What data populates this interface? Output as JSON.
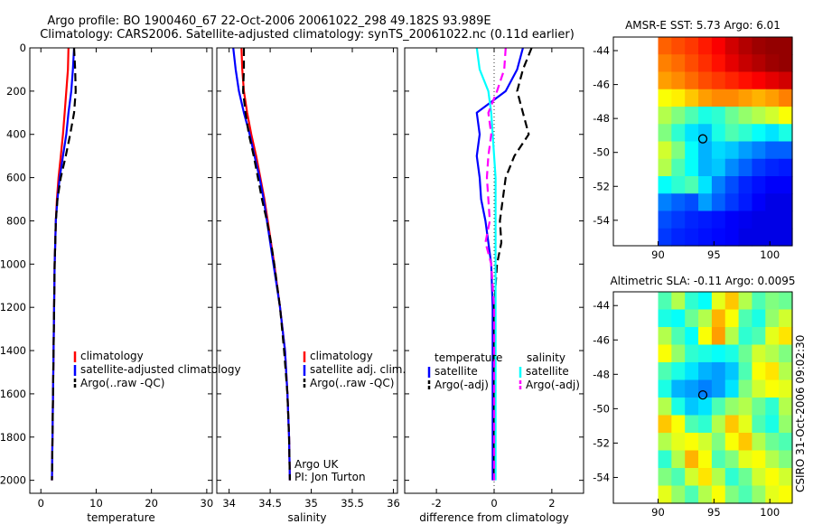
{
  "title": {
    "line1": "Argo profile: BO 1900460_67 22-Oct-2006 20061022_298 49.182S 93.989E",
    "line2": "Climatology: CARS2006. Satellite-adjusted climatology: synTS_20061022.nc (0.11d earlier)"
  },
  "colors": {
    "climatology": "#ff0000",
    "satellite": "#0000ff",
    "argo": "#000000",
    "cyan": "#00ffff",
    "magenta": "#ff00ff"
  },
  "side_label": "CSIRO 31-Oct-2006 09:02:30",
  "chart_data": [
    {
      "type": "line",
      "xlabel": "temperature",
      "xlim": [
        -2,
        31
      ],
      "ylim": [
        2060,
        0
      ],
      "xticks": [
        0,
        10,
        20,
        30
      ],
      "yticks": [
        0,
        200,
        400,
        600,
        800,
        1000,
        1200,
        1400,
        1600,
        1800,
        2000
      ],
      "legend": {
        "entries": [
          "climatology",
          "satellite-adjusted climatology",
          "Argo(..raw -QC)"
        ]
      },
      "series": [
        {
          "name": "climatology",
          "style": "solid",
          "color": "#ff0000",
          "x": [
            5.0,
            4.9,
            4.6,
            4.3,
            4.0,
            3.6,
            3.2,
            2.9,
            2.7,
            2.6,
            2.5,
            2.4,
            2.3,
            2.2,
            2.1,
            2.0
          ],
          "y": [
            0,
            100,
            200,
            300,
            400,
            500,
            600,
            700,
            800,
            900,
            1000,
            1200,
            1400,
            1600,
            1800,
            2000
          ]
        },
        {
          "name": "satellite-adjusted climatology",
          "style": "solid",
          "color": "#0000ff",
          "x": [
            6.0,
            5.8,
            5.5,
            5.0,
            4.6,
            4.0,
            3.4,
            3.0,
            2.7,
            2.6,
            2.5,
            2.4,
            2.3,
            2.2,
            2.1,
            2.0
          ],
          "y": [
            0,
            100,
            200,
            300,
            400,
            500,
            600,
            700,
            800,
            900,
            1000,
            1200,
            1400,
            1600,
            1800,
            2000
          ]
        },
        {
          "name": "Argo(..raw -QC)",
          "style": "dashed",
          "color": "#000000",
          "x": [
            6.0,
            6.2,
            6.3,
            6.0,
            5.3,
            4.5,
            3.6,
            3.0,
            2.7,
            2.6,
            2.5,
            2.4,
            2.3,
            2.2,
            2.1,
            2.0
          ],
          "y": [
            0,
            100,
            200,
            300,
            400,
            500,
            600,
            700,
            800,
            900,
            1000,
            1200,
            1400,
            1600,
            1800,
            2000
          ]
        }
      ]
    },
    {
      "type": "line",
      "xlabel": "salinity",
      "xlim": [
        33.85,
        36.05
      ],
      "ylim": [
        2060,
        0
      ],
      "xticks": [
        34,
        34.5,
        35,
        35.5,
        36
      ],
      "yticks": [],
      "annotation": [
        "Argo UK",
        "PI: Jon Turton"
      ],
      "legend": {
        "entries": [
          "climatology",
          "satellite adj. clim.",
          "Argo(..raw -QC)"
        ]
      },
      "series": [
        {
          "name": "climatology",
          "style": "solid",
          "color": "#ff0000",
          "x": [
            34.15,
            34.16,
            34.18,
            34.22,
            34.27,
            34.33,
            34.38,
            34.43,
            34.47,
            34.51,
            34.55,
            34.62,
            34.68,
            34.71,
            34.73,
            34.74
          ],
          "y": [
            0,
            100,
            200,
            300,
            400,
            500,
            600,
            700,
            800,
            900,
            1000,
            1200,
            1400,
            1600,
            1800,
            2000
          ]
        },
        {
          "name": "satellite adj. clim.",
          "style": "solid",
          "color": "#0000ff",
          "x": [
            34.05,
            34.08,
            34.12,
            34.18,
            34.25,
            34.31,
            34.37,
            34.42,
            34.46,
            34.5,
            34.54,
            34.62,
            34.68,
            34.71,
            34.73,
            34.74
          ],
          "y": [
            0,
            100,
            200,
            300,
            400,
            500,
            600,
            700,
            800,
            900,
            1000,
            1200,
            1400,
            1600,
            1800,
            2000
          ]
        },
        {
          "name": "Argo(..raw -QC)",
          "style": "dashed",
          "color": "#000000",
          "x": [
            34.18,
            34.18,
            34.17,
            34.2,
            34.24,
            34.3,
            34.35,
            34.4,
            34.46,
            34.51,
            34.55,
            34.62,
            34.67,
            34.71,
            34.73,
            34.74
          ],
          "y": [
            0,
            100,
            200,
            300,
            400,
            500,
            600,
            700,
            800,
            900,
            1000,
            1200,
            1400,
            1600,
            1800,
            2000
          ]
        }
      ]
    },
    {
      "type": "line",
      "xlabel": "difference from climatology",
      "xlim": [
        -3.1,
        3.1
      ],
      "ylim": [
        2060,
        0
      ],
      "xticks": [
        -2,
        0,
        2
      ],
      "yticks": [],
      "legend": {
        "headers": [
          "temperature",
          "salinity"
        ],
        "entries": [
          "satellite",
          "Argo(-adj)",
          "satellite",
          "Argo(-adj)"
        ]
      },
      "series": [
        {
          "name": "temperature satellite",
          "style": "solid",
          "color": "#0000ff",
          "x": [
            1.0,
            0.8,
            0.4,
            -0.6,
            -0.5,
            -0.6,
            -0.5,
            -0.45,
            -0.3,
            -0.2,
            -0.1,
            -0.05,
            -0.05,
            -0.05,
            -0.05,
            -0.05
          ],
          "y": [
            0,
            100,
            200,
            300,
            400,
            500,
            600,
            700,
            800,
            900,
            1000,
            1200,
            1400,
            1600,
            1800,
            2000
          ]
        },
        {
          "name": "temperature Argo(-adj)",
          "style": "dashed",
          "color": "#000000",
          "x": [
            1.3,
            1.0,
            0.8,
            1.0,
            1.2,
            0.7,
            0.4,
            0.3,
            0.2,
            0.25,
            0.1,
            0.0,
            0.0,
            0.0,
            0.0,
            0.0
          ],
          "y": [
            0,
            100,
            200,
            300,
            400,
            500,
            600,
            700,
            800,
            900,
            1000,
            1200,
            1400,
            1600,
            1800,
            2000
          ]
        },
        {
          "name": "salinity satellite",
          "style": "solid",
          "color": "#00ffff",
          "x": [
            -0.6,
            -0.5,
            -0.2,
            -0.1,
            -0.05,
            0.0,
            0.05,
            0.05,
            0.05,
            0.05,
            0.05,
            0.05,
            0.05,
            0.05,
            0.05,
            0.05
          ],
          "y": [
            0,
            100,
            200,
            300,
            400,
            500,
            600,
            700,
            800,
            900,
            1000,
            1200,
            1400,
            1600,
            1800,
            2000
          ]
        },
        {
          "name": "salinity Argo(-adj)",
          "style": "dashed",
          "color": "#ff00ff",
          "x": [
            0.4,
            0.35,
            0.1,
            -0.2,
            -0.1,
            -0.2,
            -0.25,
            -0.2,
            -0.15,
            -0.3,
            -0.1,
            0.0,
            0.0,
            0.0,
            0.0,
            0.0
          ],
          "y": [
            0,
            100,
            200,
            300,
            400,
            500,
            600,
            700,
            800,
            900,
            1000,
            1200,
            1400,
            1600,
            1800,
            2000
          ]
        }
      ]
    },
    {
      "type": "heatmap",
      "title": "AMSR-E SST: 5.73 Argo: 6.01",
      "xlim": [
        86,
        102
      ],
      "ylim": [
        -55.5,
        -43.2
      ],
      "xticks": [
        90,
        95,
        100
      ],
      "yticks": [
        -44,
        -46,
        -48,
        -50,
        -52,
        -54
      ],
      "data_x_start": 90,
      "marker": {
        "lon": 94.0,
        "lat": -49.2
      },
      "colormap": "jet",
      "value_rows": [
        [
          0.78,
          0.8,
          0.82,
          0.85,
          0.88,
          0.92,
          0.95,
          0.97,
          0.98,
          0.98
        ],
        [
          0.75,
          0.77,
          0.8,
          0.83,
          0.86,
          0.9,
          0.93,
          0.95,
          0.97,
          0.98
        ],
        [
          0.72,
          0.74,
          0.77,
          0.8,
          0.82,
          0.84,
          0.86,
          0.88,
          0.9,
          0.92
        ],
        [
          0.62,
          0.64,
          0.68,
          0.72,
          0.74,
          0.74,
          0.72,
          0.7,
          0.72,
          0.75
        ],
        [
          0.55,
          0.5,
          0.45,
          0.4,
          0.42,
          0.48,
          0.52,
          0.55,
          0.58,
          0.62
        ],
        [
          0.5,
          0.42,
          0.35,
          0.32,
          0.4,
          0.45,
          0.42,
          0.38,
          0.35,
          0.4
        ],
        [
          0.58,
          0.5,
          0.38,
          0.3,
          0.34,
          0.32,
          0.28,
          0.25,
          0.22,
          0.22
        ],
        [
          0.55,
          0.45,
          0.38,
          0.3,
          0.32,
          0.26,
          0.22,
          0.18,
          0.16,
          0.15
        ],
        [
          0.38,
          0.42,
          0.45,
          0.35,
          0.25,
          0.2,
          0.16,
          0.14,
          0.12,
          0.12
        ],
        [
          0.25,
          0.22,
          0.2,
          0.28,
          0.22,
          0.18,
          0.15,
          0.12,
          0.1,
          0.1
        ],
        [
          0.2,
          0.18,
          0.16,
          0.15,
          0.14,
          0.12,
          0.11,
          0.1,
          0.1,
          0.1
        ],
        [
          0.18,
          0.16,
          0.15,
          0.14,
          0.13,
          0.12,
          0.1,
          0.1,
          0.1,
          0.1
        ]
      ]
    },
    {
      "type": "heatmap",
      "title": "Altimetric SLA: -0.11 Argo: 0.0095",
      "xlim": [
        86,
        102
      ],
      "ylim": [
        -55.5,
        -43.2
      ],
      "xticks": [
        90,
        95,
        100
      ],
      "yticks": [
        -44,
        -46,
        -48,
        -50,
        -52,
        -54
      ],
      "data_x_start": 90,
      "marker": {
        "lon": 94.0,
        "lat": -49.2
      },
      "colormap": "jet",
      "value_rows": [
        [
          0.45,
          0.55,
          0.42,
          0.38,
          0.6,
          0.68,
          0.55,
          0.45,
          0.5,
          0.48
        ],
        [
          0.4,
          0.38,
          0.48,
          0.55,
          0.7,
          0.62,
          0.45,
          0.4,
          0.52,
          0.58
        ],
        [
          0.55,
          0.45,
          0.38,
          0.62,
          0.72,
          0.55,
          0.42,
          0.45,
          0.6,
          0.65
        ],
        [
          0.62,
          0.52,
          0.42,
          0.4,
          0.38,
          0.4,
          0.48,
          0.58,
          0.55,
          0.5
        ],
        [
          0.45,
          0.4,
          0.35,
          0.3,
          0.28,
          0.32,
          0.45,
          0.62,
          0.65,
          0.55
        ],
        [
          0.4,
          0.3,
          0.28,
          0.25,
          0.28,
          0.35,
          0.5,
          0.58,
          0.62,
          0.6
        ],
        [
          0.55,
          0.4,
          0.32,
          0.35,
          0.45,
          0.52,
          0.55,
          0.48,
          0.42,
          0.55
        ],
        [
          0.68,
          0.62,
          0.45,
          0.42,
          0.55,
          0.68,
          0.6,
          0.45,
          0.4,
          0.52
        ],
        [
          0.55,
          0.6,
          0.62,
          0.58,
          0.5,
          0.62,
          0.68,
          0.55,
          0.48,
          0.45
        ],
        [
          0.42,
          0.55,
          0.7,
          0.62,
          0.45,
          0.5,
          0.6,
          0.62,
          0.55,
          0.5
        ],
        [
          0.5,
          0.45,
          0.58,
          0.65,
          0.55,
          0.42,
          0.48,
          0.58,
          0.62,
          0.58
        ],
        [
          0.6,
          0.52,
          0.45,
          0.55,
          0.62,
          0.5,
          0.45,
          0.52,
          0.6,
          0.62
        ]
      ]
    }
  ]
}
